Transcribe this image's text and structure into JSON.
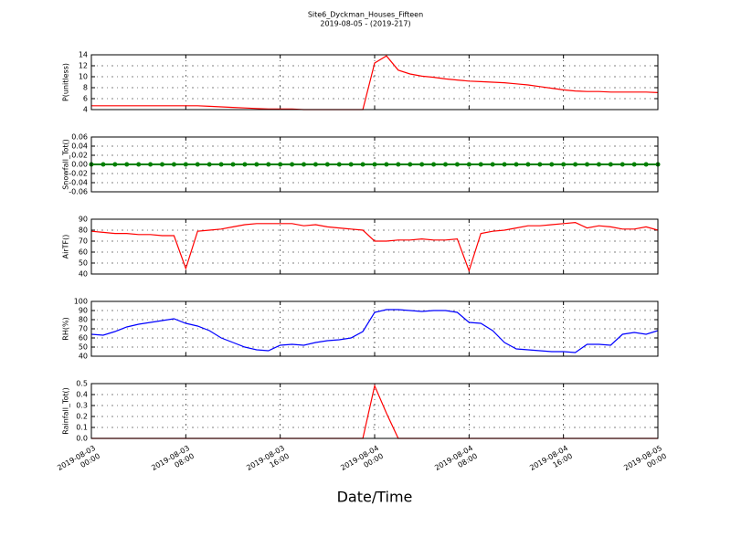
{
  "title": "Site6_Dyckman_Houses_Fifteen",
  "subtitle": "2019-08-05 - (2019-217)",
  "xlabel": "Date/Time",
  "chart_data": [
    {
      "type": "line",
      "ylabel": "P(unitless)",
      "color": "#ff0000",
      "x": [
        0,
        1,
        2,
        3,
        4,
        5,
        6,
        7,
        8,
        9,
        10,
        11,
        12,
        13,
        14,
        15,
        16,
        17,
        18,
        19,
        20,
        21,
        22,
        23,
        24,
        25,
        26,
        27,
        28,
        29,
        30,
        31,
        32,
        33,
        34,
        35,
        36,
        37,
        38,
        39,
        40,
        41,
        42,
        43,
        44,
        45,
        46,
        47,
        48
      ],
      "values": [
        4.7,
        4.7,
        4.7,
        4.7,
        4.7,
        4.7,
        4.7,
        4.7,
        4.7,
        4.7,
        4.6,
        4.5,
        4.4,
        4.3,
        4.2,
        4.1,
        4.1,
        4.1,
        4.0,
        4.0,
        4.0,
        4.0,
        4.0,
        4.0,
        12.5,
        13.8,
        11.2,
        10.5,
        10.1,
        9.9,
        9.6,
        9.4,
        9.2,
        9.1,
        9.0,
        8.9,
        8.7,
        8.5,
        8.2,
        7.9,
        7.6,
        7.4,
        7.3,
        7.3,
        7.2,
        7.2,
        7.2,
        7.2,
        7.1
      ],
      "xlim": [
        0,
        48
      ],
      "ylim": [
        4,
        14
      ],
      "yticks": [
        4,
        6,
        8,
        10,
        12,
        14
      ],
      "grid": true
    },
    {
      "type": "line",
      "ylabel": "Snowfall_Tot()",
      "color": "#008000",
      "marker": true,
      "x": [
        0,
        1,
        2,
        3,
        4,
        5,
        6,
        7,
        8,
        9,
        10,
        11,
        12,
        13,
        14,
        15,
        16,
        17,
        18,
        19,
        20,
        21,
        22,
        23,
        24,
        25,
        26,
        27,
        28,
        29,
        30,
        31,
        32,
        33,
        34,
        35,
        36,
        37,
        38,
        39,
        40,
        41,
        42,
        43,
        44,
        45,
        46,
        47,
        48
      ],
      "values": [
        0,
        0,
        0,
        0,
        0,
        0,
        0,
        0,
        0,
        0,
        0,
        0,
        0,
        0,
        0,
        0,
        0,
        0,
        0,
        0,
        0,
        0,
        0,
        0,
        0,
        0,
        0,
        0,
        0,
        0,
        0,
        0,
        0,
        0,
        0,
        0,
        0,
        0,
        0,
        0,
        0,
        0,
        0,
        0,
        0,
        0,
        0,
        0,
        0
      ],
      "xlim": [
        0,
        48
      ],
      "ylim": [
        -0.06,
        0.06
      ],
      "yticks": [
        -0.06,
        -0.04,
        -0.02,
        {
          "value": 0,
          "label": "0.00"
        },
        0.02,
        0.04,
        0.06
      ],
      "grid": true
    },
    {
      "type": "line",
      "ylabel": "AirTF()",
      "color": "#ff0000",
      "x": [
        0,
        1,
        2,
        3,
        4,
        5,
        6,
        7,
        8,
        9,
        10,
        11,
        12,
        13,
        14,
        15,
        16,
        17,
        18,
        19,
        20,
        21,
        22,
        23,
        24,
        25,
        26,
        27,
        28,
        29,
        30,
        31,
        32,
        33,
        34,
        35,
        36,
        37,
        38,
        39,
        40,
        41,
        42,
        43,
        44,
        45,
        46,
        47,
        48
      ],
      "values": [
        79,
        78,
        77,
        77,
        76,
        76,
        75,
        75,
        45,
        79,
        80,
        81,
        83,
        85,
        86,
        86,
        86,
        86,
        84,
        85,
        83,
        82,
        81,
        80,
        70,
        70,
        71,
        71,
        72,
        71,
        71,
        72,
        43,
        77,
        79,
        80,
        82,
        84,
        84,
        85,
        86,
        87,
        82,
        84,
        83,
        81,
        81,
        83,
        80
      ],
      "xlim": [
        0,
        48
      ],
      "ylim": [
        40,
        90
      ],
      "yticks": [
        40,
        50,
        60,
        70,
        80,
        90
      ],
      "grid": true
    },
    {
      "type": "line",
      "ylabel": "RH(%)",
      "color": "#0000ff",
      "x": [
        0,
        1,
        2,
        3,
        4,
        5,
        6,
        7,
        8,
        9,
        10,
        11,
        12,
        13,
        14,
        15,
        16,
        17,
        18,
        19,
        20,
        21,
        22,
        23,
        24,
        25,
        26,
        27,
        28,
        29,
        30,
        31,
        32,
        33,
        34,
        35,
        36,
        37,
        38,
        39,
        40,
        41,
        42,
        43,
        44,
        45,
        46,
        47,
        48
      ],
      "values": [
        64,
        63,
        67,
        72,
        75,
        77,
        79,
        81,
        76,
        73,
        68,
        60,
        55,
        50,
        47,
        46,
        52,
        53,
        52,
        55,
        57,
        58,
        60,
        67,
        88,
        91,
        91,
        90,
        89,
        90,
        90,
        88,
        77,
        76,
        68,
        55,
        48,
        47,
        46,
        45,
        45,
        44,
        53,
        53,
        52,
        64,
        66,
        64,
        68
      ],
      "xlim": [
        0,
        48
      ],
      "ylim": [
        40,
        100
      ],
      "yticks": [
        40,
        50,
        60,
        70,
        80,
        90,
        100
      ],
      "grid": true
    },
    {
      "type": "line",
      "ylabel": "Rainfall_Tot()",
      "color": "#ff0000",
      "x": [
        0,
        1,
        2,
        3,
        4,
        5,
        6,
        7,
        8,
        9,
        10,
        11,
        12,
        13,
        14,
        15,
        16,
        17,
        18,
        19,
        20,
        21,
        22,
        23,
        24,
        25,
        26,
        27,
        28,
        29,
        30,
        31,
        32,
        33,
        34,
        35,
        36,
        37,
        38,
        39,
        40,
        41,
        42,
        43,
        44,
        45,
        46,
        47,
        48
      ],
      "values": [
        0,
        0,
        0,
        0,
        0,
        0,
        0,
        0,
        0,
        0,
        0,
        0,
        0,
        0,
        0,
        0,
        0,
        0,
        0,
        0,
        0,
        0,
        0,
        0,
        0.48,
        0.23,
        0,
        0,
        0,
        0,
        0,
        0,
        0,
        0,
        0,
        0,
        0,
        0,
        0,
        0,
        0,
        0,
        0,
        0,
        0,
        0,
        0,
        0,
        0
      ],
      "xlim": [
        0,
        48
      ],
      "ylim": [
        0,
        0.5
      ],
      "yticks": [
        {
          "value": 0,
          "label": "0.0"
        },
        0.1,
        0.2,
        0.3,
        0.4,
        0.5
      ],
      "xticks": [
        {
          "value": 0,
          "label": "2019-08-03\n00:00"
        },
        {
          "value": 8,
          "label": "2019-08-03\n08:00"
        },
        {
          "value": 16,
          "label": "2019-08-03\n16:00"
        },
        {
          "value": 24,
          "label": "2019-08-04\n00:00"
        },
        {
          "value": 32,
          "label": "2019-08-04\n08:00"
        },
        {
          "value": 40,
          "label": "2019-08-04\n16:00"
        },
        {
          "value": 48,
          "label": "2019-08-05\n00:00"
        }
      ],
      "grid": true
    }
  ]
}
